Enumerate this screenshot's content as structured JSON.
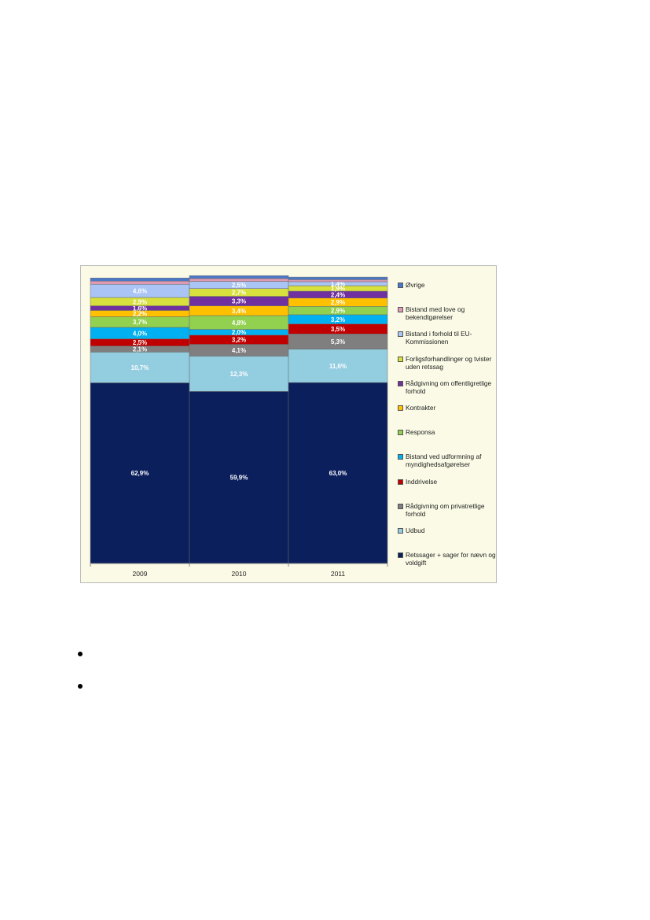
{
  "chart_data": {
    "type": "bar",
    "stacked": true,
    "categories": [
      "2009",
      "2010",
      "2011"
    ],
    "ylim": [
      0,
      100
    ],
    "grid": false,
    "legend_position": "right",
    "series": [
      {
        "name": "Retssager + sager for nævn og voldgift",
        "color": "#0b1f5c",
        "values": [
          62.9,
          59.9,
          63.0
        ],
        "labels": [
          "62,9%",
          "59,9%",
          "63,0%"
        ]
      },
      {
        "name": "Udbud",
        "color": "#93cde0",
        "values": [
          10.7,
          12.3,
          11.6
        ],
        "labels": [
          "10,7%",
          "12,3%",
          "11,6%"
        ]
      },
      {
        "name": "Rådgivning om privatretlige forhold",
        "color": "#7f7f7f",
        "values": [
          2.1,
          4.1,
          5.3
        ],
        "labels": [
          "2,1%",
          "4,1%",
          "5,3%"
        ]
      },
      {
        "name": "Inddrivelse",
        "color": "#c00000",
        "values": [
          2.5,
          3.2,
          3.5
        ],
        "labels": [
          "2,5%",
          "3,2%",
          "3,5%"
        ]
      },
      {
        "name": "Bistand ved udformning af myndighedsafgørelser",
        "color": "#00b0f0",
        "values": [
          4.0,
          2.0,
          3.2
        ],
        "labels": [
          "4,0%",
          "2,0%",
          "3,2%"
        ]
      },
      {
        "name": "Responsa",
        "color": "#92d050",
        "values": [
          3.7,
          4.8,
          2.9
        ],
        "labels": [
          "3,7%",
          "4,8%",
          "2,9%"
        ]
      },
      {
        "name": "Kontrakter",
        "color": "#ffc000",
        "values": [
          2.2,
          3.4,
          2.9
        ],
        "labels": [
          "2,2%",
          "3,4%",
          "2,9%"
        ]
      },
      {
        "name": "Rådgivning om offentligretlige forhold",
        "color": "#7030a0",
        "values": [
          1.6,
          3.3,
          2.4
        ],
        "labels": [
          "1,6%",
          "3,3%",
          "2,4%"
        ]
      },
      {
        "name": "Forligsforhandlinger og tvister uden retssag",
        "color": "#d7e03c",
        "values": [
          2.9,
          2.7,
          1.9
        ],
        "labels": [
          "2,9%",
          "2,7%",
          "1,9%"
        ]
      },
      {
        "name": "Bistand i forhold til EU-Kommissionen",
        "color": "#a9c4f5",
        "values": [
          4.6,
          2.5,
          1.4
        ],
        "labels": [
          "4,6%",
          "2,5%",
          "1,4%"
        ]
      },
      {
        "name": "Bistand med love og bekendtgørelser",
        "color": "#e09ab3",
        "values": [
          1.1,
          1.0,
          0.7
        ],
        "labels": [
          "",
          "",
          ""
        ]
      },
      {
        "name": "Øvrige",
        "color": "#4a78c8",
        "values": [
          1.1,
          1.0,
          0.9
        ],
        "labels": [
          "",
          "",
          ""
        ]
      }
    ]
  }
}
